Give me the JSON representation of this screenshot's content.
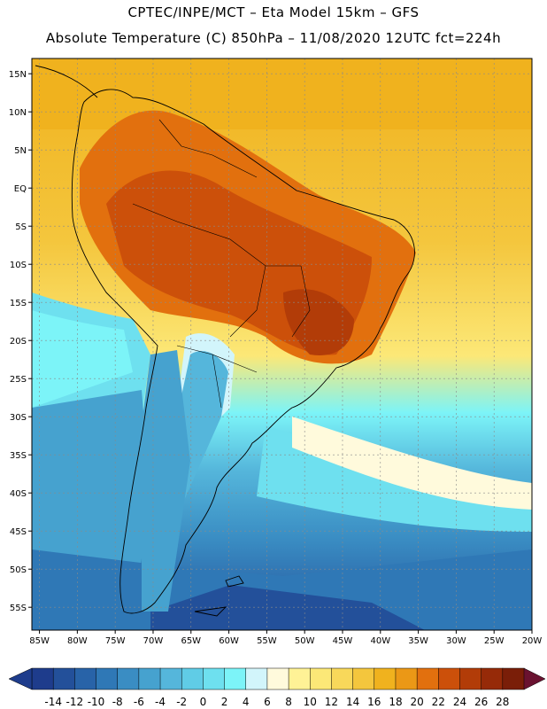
{
  "title_line_1": "CPTEC/INPE/MCT –  Eta Model 15km – GFS",
  "title_line_2": "Absolute Temperature (C) 850hPa – 11/08/2020 12UTC fct=224h",
  "map": {
    "lon_range": [
      -86,
      -20
    ],
    "lat_range": [
      -58,
      17
    ],
    "x_ticks": [
      "85W",
      "80W",
      "75W",
      "70W",
      "65W",
      "60W",
      "55W",
      "50W",
      "45W",
      "40W",
      "35W",
      "30W",
      "25W",
      "20W"
    ],
    "x_tick_values": [
      -85,
      -80,
      -75,
      -70,
      -65,
      -60,
      -55,
      -50,
      -45,
      -40,
      -35,
      -30,
      -25,
      -20
    ],
    "y_ticks": [
      "15N",
      "10N",
      "5N",
      "EQ",
      "5S",
      "10S",
      "15S",
      "20S",
      "25S",
      "30S",
      "35S",
      "40S",
      "45S",
      "50S",
      "55S"
    ],
    "y_tick_values": [
      15,
      10,
      5,
      0,
      -5,
      -10,
      -15,
      -20,
      -25,
      -30,
      -35,
      -40,
      -45,
      -50,
      -55
    ]
  },
  "colorbar": {
    "labels": [
      "-14",
      "-12",
      "-10",
      "-8",
      "-6",
      "-4",
      "-2",
      "0",
      "2",
      "4",
      "6",
      "8",
      "10",
      "12",
      "14",
      "16",
      "18",
      "20",
      "22",
      "24",
      "26",
      "28"
    ],
    "colors": [
      "#1e3c8c",
      "#23509a",
      "#2863a8",
      "#2f78b6",
      "#3a8dc3",
      "#46a2cf",
      "#55b6db",
      "#60cce6",
      "#6ee0ef",
      "#7cf4f8",
      "#d2f5fb",
      "#fffadc",
      "#fff296",
      "#fce877",
      "#f8d85a",
      "#f4c63d",
      "#f0b21e",
      "#eb9816",
      "#e2700e",
      "#cc500a",
      "#b23c08",
      "#962a08",
      "#7a1e08"
    ]
  }
}
